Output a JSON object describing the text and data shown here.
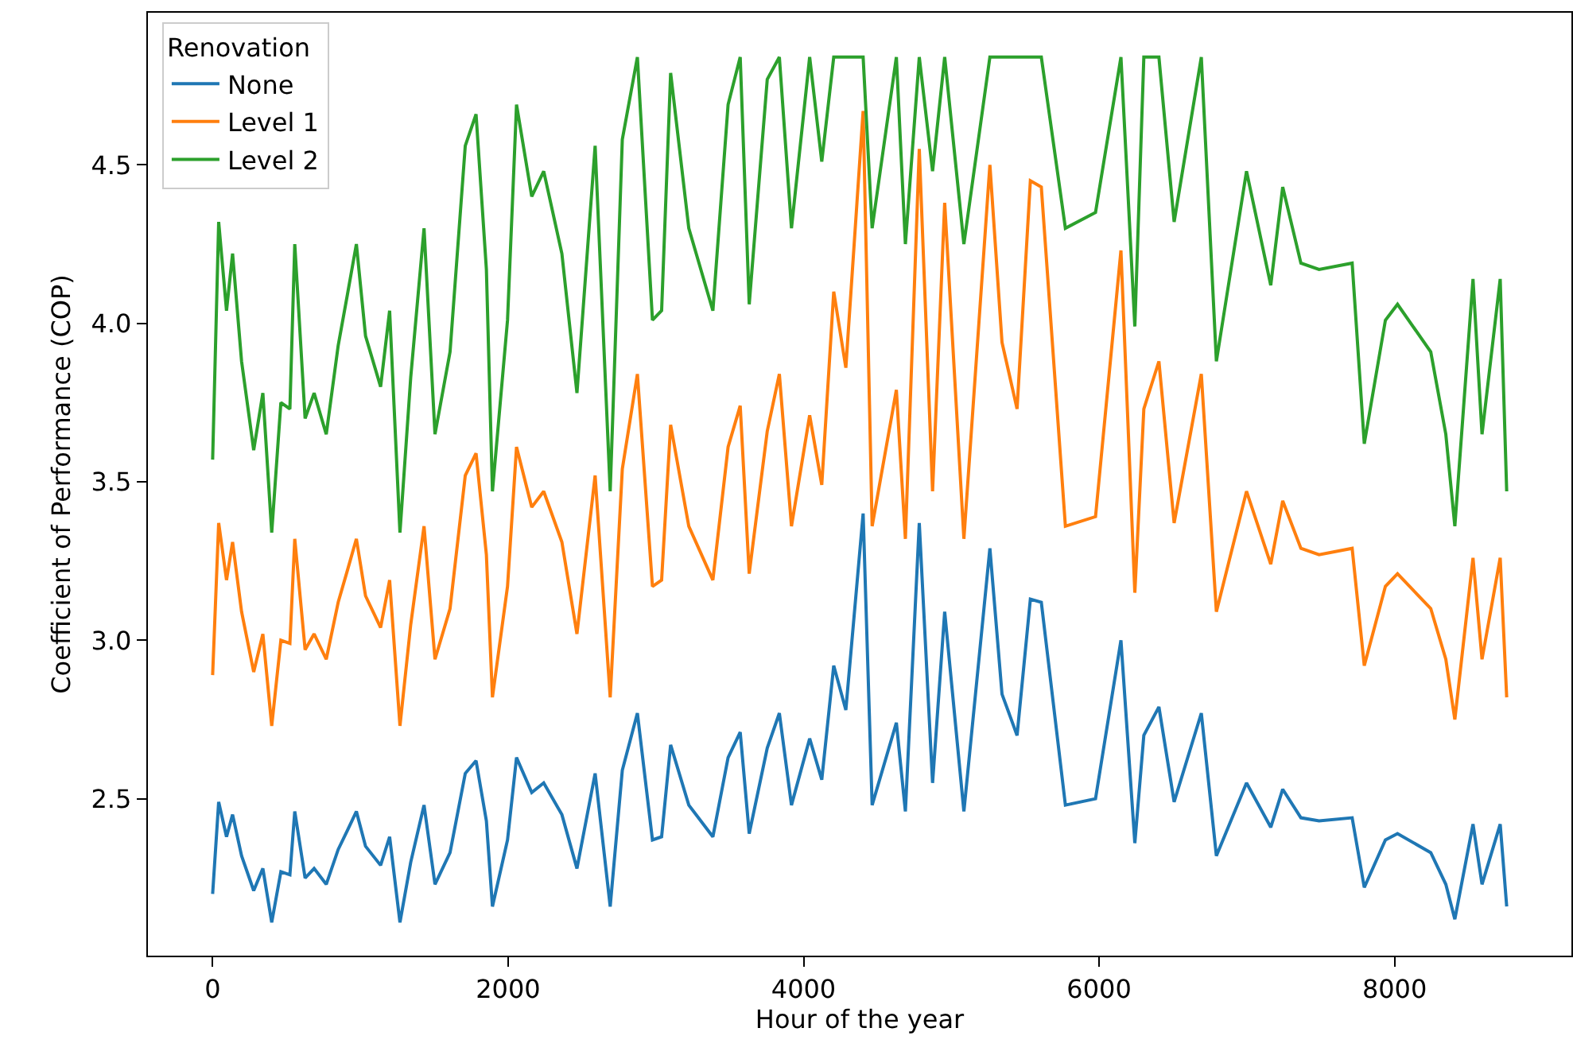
{
  "chart_data": {
    "type": "line",
    "xlabel": "Hour of the year",
    "ylabel": "Coefficient of Performance (COP)",
    "legend_title": "Renovation",
    "legend": "top left",
    "marker": "none",
    "line_style": "solid",
    "xlim": [
      -438,
      9197
    ],
    "ylim": [
      2.005,
      4.98
    ],
    "xticks": [
      0,
      2000,
      4000,
      6000,
      8000
    ],
    "yticks": [
      2.5,
      {
        "value": 3,
        "label": "3.0"
      },
      3.5,
      {
        "value": 4,
        "label": "4.0"
      },
      4.5
    ],
    "x": [
      0,
      41,
      94,
      135,
      196,
      278,
      340,
      400,
      462,
      523,
      556,
      626,
      687,
      769,
      850,
      912,
      973,
      1035,
      1137,
      1198,
      1268,
      1341,
      1431,
      1505,
      1607,
      1710,
      1783,
      1853,
      1894,
      1996,
      2057,
      2160,
      2241,
      2364,
      2466,
      2589,
      2691,
      2773,
      2875,
      2977,
      3039,
      3100,
      3223,
      3386,
      3489,
      3571,
      3632,
      3754,
      3836,
      3918,
      4041,
      4123,
      4204,
      4286,
      4403,
      4464,
      4628,
      4689,
      4783,
      4873,
      4955,
      5085,
      5261,
      5343,
      5445,
      5535,
      5609,
      5772,
      5976,
      6148,
      6242,
      6303,
      6405,
      6508,
      6692,
      6794,
      6998,
      7162,
      7243,
      7366,
      7489,
      7713,
      7795,
      7938,
      8020,
      8245,
      8347,
      8408,
      8531,
      8592,
      8715,
      8759
    ],
    "series": [
      {
        "name": "None",
        "color": "#1f77b4",
        "values": [
          2.2,
          2.49,
          2.38,
          2.45,
          2.32,
          2.21,
          2.28,
          2.11,
          2.27,
          2.26,
          2.46,
          2.25,
          2.28,
          2.23,
          2.34,
          2.4,
          2.46,
          2.35,
          2.29,
          2.38,
          2.11,
          2.3,
          2.48,
          2.23,
          2.33,
          2.58,
          2.62,
          2.43,
          2.16,
          2.37,
          2.63,
          2.52,
          2.55,
          2.45,
          2.28,
          2.58,
          2.16,
          2.59,
          2.77,
          2.37,
          2.38,
          2.67,
          2.48,
          2.38,
          2.63,
          2.71,
          2.39,
          2.66,
          2.77,
          2.48,
          2.69,
          2.56,
          2.92,
          2.78,
          3.4,
          2.48,
          2.74,
          2.46,
          3.37,
          2.55,
          3.09,
          2.46,
          3.29,
          2.83,
          2.7,
          3.13,
          3.12,
          2.48,
          2.5,
          3.0,
          2.36,
          2.7,
          2.79,
          2.49,
          2.77,
          2.32,
          2.55,
          2.41,
          2.53,
          2.44,
          2.43,
          2.44,
          2.22,
          2.37,
          2.39,
          2.33,
          2.23,
          2.12,
          2.42,
          2.23,
          2.42,
          2.16
        ]
      },
      {
        "name": "Level 1",
        "color": "#ff7f0e",
        "values": [
          2.89,
          3.37,
          3.19,
          3.31,
          3.09,
          2.9,
          3.02,
          2.73,
          3.0,
          2.99,
          3.32,
          2.97,
          3.02,
          2.94,
          3.12,
          3.22,
          3.32,
          3.14,
          3.04,
          3.19,
          2.73,
          3.05,
          3.36,
          2.94,
          3.1,
          3.52,
          3.59,
          3.27,
          2.82,
          3.17,
          3.61,
          3.42,
          3.47,
          3.31,
          3.02,
          3.52,
          2.82,
          3.54,
          3.84,
          3.17,
          3.19,
          3.68,
          3.36,
          3.19,
          3.61,
          3.74,
          3.21,
          3.66,
          3.84,
          3.36,
          3.71,
          3.49,
          4.1,
          3.86,
          4.67,
          3.36,
          3.79,
          3.32,
          4.55,
          3.47,
          4.38,
          3.32,
          4.5,
          3.94,
          3.73,
          4.45,
          4.43,
          3.36,
          3.39,
          4.23,
          3.15,
          3.73,
          3.88,
          3.37,
          3.84,
          3.09,
          3.47,
          3.24,
          3.44,
          3.29,
          3.27,
          3.29,
          2.92,
          3.17,
          3.21,
          3.1,
          2.94,
          2.75,
          3.26,
          2.94,
          3.26,
          2.82
        ]
      },
      {
        "name": "Level 2",
        "color": "#2ca02c",
        "values": [
          3.57,
          4.32,
          4.04,
          4.22,
          3.88,
          3.6,
          3.78,
          3.34,
          3.75,
          3.73,
          4.25,
          3.7,
          3.78,
          3.65,
          3.93,
          4.09,
          4.25,
          3.96,
          3.8,
          4.04,
          3.34,
          3.83,
          4.3,
          3.65,
          3.91,
          4.56,
          4.66,
          4.17,
          3.47,
          4.01,
          4.69,
          4.4,
          4.48,
          4.22,
          3.78,
          4.56,
          3.47,
          4.58,
          4.84,
          4.01,
          4.04,
          4.79,
          4.3,
          4.04,
          4.69,
          4.84,
          4.06,
          4.77,
          4.84,
          4.3,
          4.84,
          4.51,
          4.84,
          4.84,
          4.84,
          4.3,
          4.84,
          4.25,
          4.84,
          4.48,
          4.84,
          4.25,
          4.84,
          4.84,
          4.84,
          4.84,
          4.84,
          4.3,
          4.35,
          4.84,
          3.99,
          4.84,
          4.84,
          4.32,
          4.84,
          3.88,
          4.48,
          4.12,
          4.43,
          4.19,
          4.17,
          4.19,
          3.62,
          4.01,
          4.06,
          3.91,
          3.65,
          3.36,
          4.14,
          3.65,
          4.14,
          3.47
        ]
      }
    ]
  }
}
